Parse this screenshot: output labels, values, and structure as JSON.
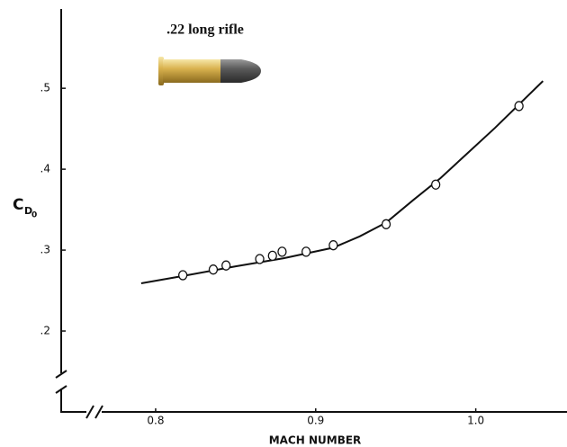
{
  "chart_data": {
    "type": "scatter",
    "title": ".22 long rifle",
    "x_label": "MACH NUMBER",
    "y_label_parts": [
      "C",
      "D",
      "0"
    ],
    "x": [
      0.817,
      0.836,
      0.844,
      0.865,
      0.873,
      0.879,
      0.894,
      0.911,
      0.944,
      0.975,
      1.027
    ],
    "values": [
      0.269,
      0.276,
      0.281,
      0.289,
      0.293,
      0.298,
      0.298,
      0.306,
      0.332,
      0.381,
      0.478
    ],
    "curve": {
      "x": [
        0.791,
        0.817,
        0.85,
        0.88,
        0.911,
        0.9275,
        0.944,
        0.961,
        0.978,
        0.995,
        1.012,
        1.027,
        1.042
      ],
      "values": [
        0.259,
        0.268,
        0.28,
        0.29,
        0.303,
        0.317,
        0.334,
        0.362,
        0.389,
        0.42,
        0.451,
        0.48,
        0.509
      ]
    },
    "color": "#111111",
    "xlim": [
      0.741,
      1.057
    ],
    "ylim": [
      0.1,
      0.598
    ],
    "xticks": [
      0.8,
      0.9,
      {
        "value": 1,
        "label": "1.0"
      }
    ],
    "yticks": [
      {
        "value": 0.2,
        "label": ".2"
      },
      {
        "value": 0.3,
        "label": ".3"
      },
      {
        "value": 0.4,
        "label": ".4"
      },
      {
        "value": 0.5,
        "label": ".5"
      }
    ]
  }
}
